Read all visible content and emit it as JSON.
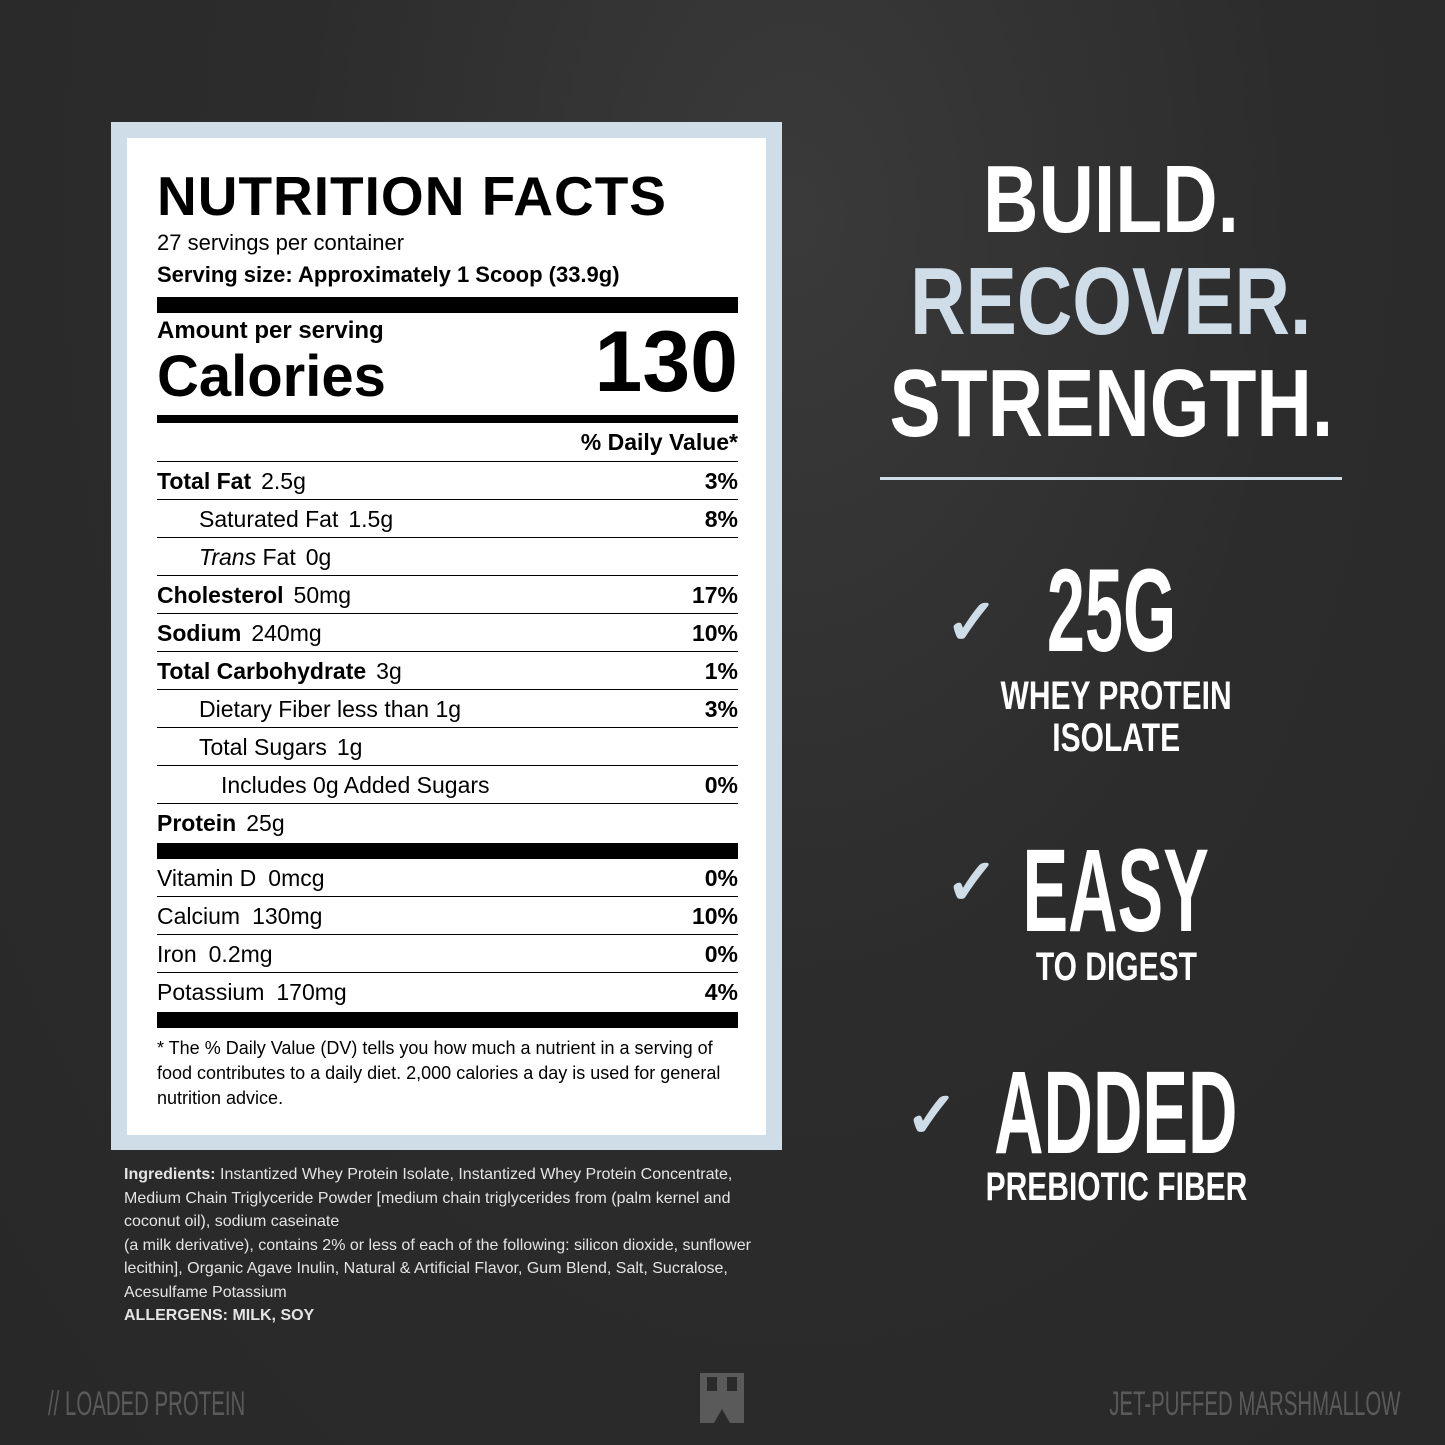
{
  "label": {
    "title": "NUTRITION FACTS",
    "servings": "27 servings per container",
    "serving_size": "Serving size: Approximately 1 Scoop (33.9g)",
    "amount_per_serving": "Amount per serving",
    "calories_label": "Calories",
    "calories": "130",
    "dv_header": "% Daily Value*",
    "rows": [
      {
        "name": "Total Fat",
        "amount": "2.5g",
        "dv": "3%"
      },
      {
        "name": "Saturated Fat",
        "amount": "1.5g",
        "dv": "8%"
      },
      {
        "name": "Trans",
        "name2": "Fat",
        "amount": "0g",
        "dv": ""
      },
      {
        "name": "Cholesterol",
        "amount": "50mg",
        "dv": "17%"
      },
      {
        "name": "Sodium",
        "amount": "240mg",
        "dv": "10%"
      },
      {
        "name": "Total Carbohydrate",
        "amount": "3g",
        "dv": "1%"
      },
      {
        "name": "Dietary Fiber less than 1g",
        "amount": "",
        "dv": "3%"
      },
      {
        "name": "Total Sugars",
        "amount": "1g",
        "dv": ""
      },
      {
        "name": "Includes 0g Added Sugars",
        "amount": "",
        "dv": "0%"
      },
      {
        "name": "Protein",
        "amount": "25g",
        "dv": ""
      }
    ],
    "vitamins": [
      {
        "name": "Vitamin D",
        "amount": "0mcg",
        "dv": "0%"
      },
      {
        "name": "Calcium",
        "amount": "130mg",
        "dv": "10%"
      },
      {
        "name": "Iron",
        "amount": "0.2mg",
        "dv": "0%"
      },
      {
        "name": "Potassium",
        "amount": "170mg",
        "dv": "4%"
      }
    ],
    "footnote": "* The % Daily Value (DV) tells you how much a nutrient in a serving of food contributes to a daily diet. 2,000 calories a day is used for general nutrition advice."
  },
  "ingredients": {
    "label": "Ingredients:",
    "text": "Instantized Whey Protein Isolate, Instantized Whey Protein Concentrate, Medium Chain Triglyceride Powder [medium chain triglycerides from (palm kernel and coconut oil), sodium caseinate",
    "text2": "(a milk derivative), contains 2% or less of each of the following: silicon dioxide, sunflower lecithin], Organic Agave Inulin, Natural & Artificial Flavor, Gum Blend, Salt, Sucralose, Acesulfame Potassium",
    "allergens": "ALLERGENS: MILK, SOY"
  },
  "headline": [
    "BUILD.",
    "RECOVER.",
    "STRENGTH."
  ],
  "features": [
    {
      "big": "25G",
      "sub": "WHEY PROTEIN",
      "sub2": "ISOLATE",
      "icon": "check-icon"
    },
    {
      "big": "EASY",
      "sub": "TO DIGEST",
      "icon": "check-icon"
    },
    {
      "big": "ADDED",
      "sub": "PREBIOTIC FIBER",
      "icon": "check-icon"
    }
  ],
  "footer": {
    "left": "// LOADED PROTEIN",
    "right": "JET-PUFFED MARSHMALLOW",
    "logo": "brand-logo"
  },
  "colors": {
    "accent": "#cfdde8",
    "background": "#2a2a2a"
  }
}
